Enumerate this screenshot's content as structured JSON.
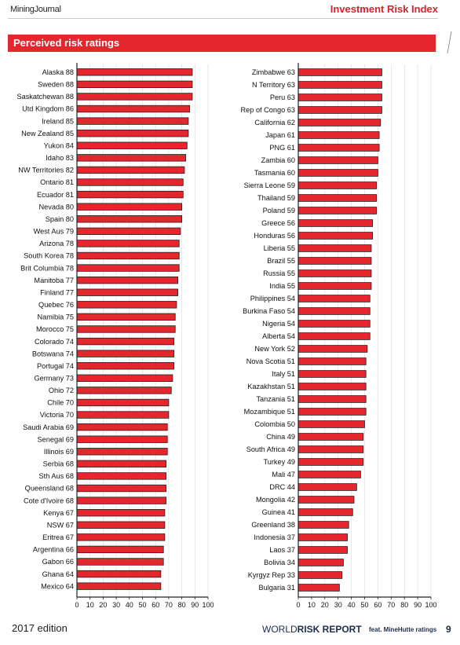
{
  "header": {
    "logo_main": "Mining",
    "logo_rest": "Journal",
    "section_title": "Investment Risk Index"
  },
  "banner": {
    "title": "Perceived risk ratings"
  },
  "footer": {
    "edition": "2017 edition",
    "brand_a": "WORLD",
    "brand_b": "RISK REPORT",
    "brand_feat": "feat. MineHutte ratings",
    "page_number": "9"
  },
  "colors": {
    "bar_fill": "#e5262d",
    "bar_stroke": "#222222",
    "accent": "#d7242a"
  },
  "chart_data": [
    {
      "type": "bar",
      "orientation": "horizontal",
      "xlim": [
        0,
        100
      ],
      "xticks": [
        "0",
        "10",
        "20",
        "30",
        "40",
        "50",
        "60",
        "70",
        "80",
        "90",
        "100"
      ],
      "labels": [
        "Alaska 88",
        "Sweden 88",
        "Saskatchewan 88",
        "Utd Kingdom 86",
        "Ireland 85",
        "New Zealand 85",
        "Yukon 84",
        "Idaho 83",
        "NW Territories 82",
        "Ontario 81",
        "Ecuador 81",
        "Nevada 80",
        "Spain 80",
        "West Aus 79",
        "Arizona 78",
        "South Korea 78",
        "Brit Columbia 78",
        "Manitoba 77",
        "Finland 77",
        "Quebec 76",
        "Namibia 75",
        "Morocco 75",
        "Colorado 74",
        "Botswana 74",
        "Portugal 74",
        "Germany 73",
        "Ohio 72",
        "Chile 70",
        "Victoria 70",
        "Saudi Arabia 69",
        "Senegal 69",
        "Illinois 69",
        "Serbia 68",
        "Sth Aus 68",
        "Queensland 68",
        "Cote d'Ivoire 68",
        "Kenya 67",
        "NSW 67",
        "Eritrea 67",
        "Argentina 66",
        "Gabon 66",
        "Ghana 64",
        "Mexico 64"
      ],
      "values": [
        88,
        88,
        88,
        86,
        85,
        85,
        84,
        83,
        82,
        81,
        81,
        80,
        80,
        79,
        78,
        78,
        78,
        77,
        77,
        76,
        75,
        75,
        74,
        74,
        74,
        73,
        72,
        70,
        70,
        69,
        69,
        69,
        68,
        68,
        68,
        68,
        67,
        67,
        67,
        66,
        66,
        64,
        64
      ]
    },
    {
      "type": "bar",
      "orientation": "horizontal",
      "xlim": [
        0,
        100
      ],
      "xticks": [
        "0",
        "10",
        "20",
        "30",
        "40",
        "50",
        "60",
        "70",
        "80",
        "90",
        "100"
      ],
      "labels": [
        "Zimbabwe 63",
        "N Territory 63",
        "Peru 63",
        "Rep of Congo 63",
        "California 62",
        "Japan 61",
        "PNG 61",
        "Zambia 60",
        "Tasmania 60",
        "Sierra Leone 59",
        "Thailand 59",
        "Poland 59",
        "Greece 56",
        "Honduras 56",
        "Liberia 55",
        "Brazil 55",
        "Russia 55",
        "India 55",
        "Philippines 54",
        "Burkina Faso 54",
        "Nigeria 54",
        "Alberta 54",
        "New York 52",
        "Nova Scotia 51",
        "Italy 51",
        "Kazakhstan 51",
        "Tanzania 51",
        "Mozambique 51",
        "Colombia 50",
        "China 49",
        "South Africa 49",
        "Turkey 49",
        "Mali 47",
        "DRC 44",
        "Mongolia 42",
        "Guinea 41",
        "Greenland 38",
        "Indonesia 37",
        "Laos 37",
        "Bolivia 34",
        "Kyrgyz Rep 33",
        "Bulgaria 31"
      ],
      "values": [
        63,
        63,
        63,
        63,
        62,
        61,
        61,
        60,
        60,
        59,
        59,
        59,
        56,
        56,
        55,
        55,
        55,
        55,
        54,
        54,
        54,
        54,
        52,
        51,
        51,
        51,
        51,
        51,
        50,
        49,
        49,
        49,
        47,
        44,
        42,
        41,
        38,
        37,
        37,
        34,
        33,
        31
      ]
    }
  ]
}
